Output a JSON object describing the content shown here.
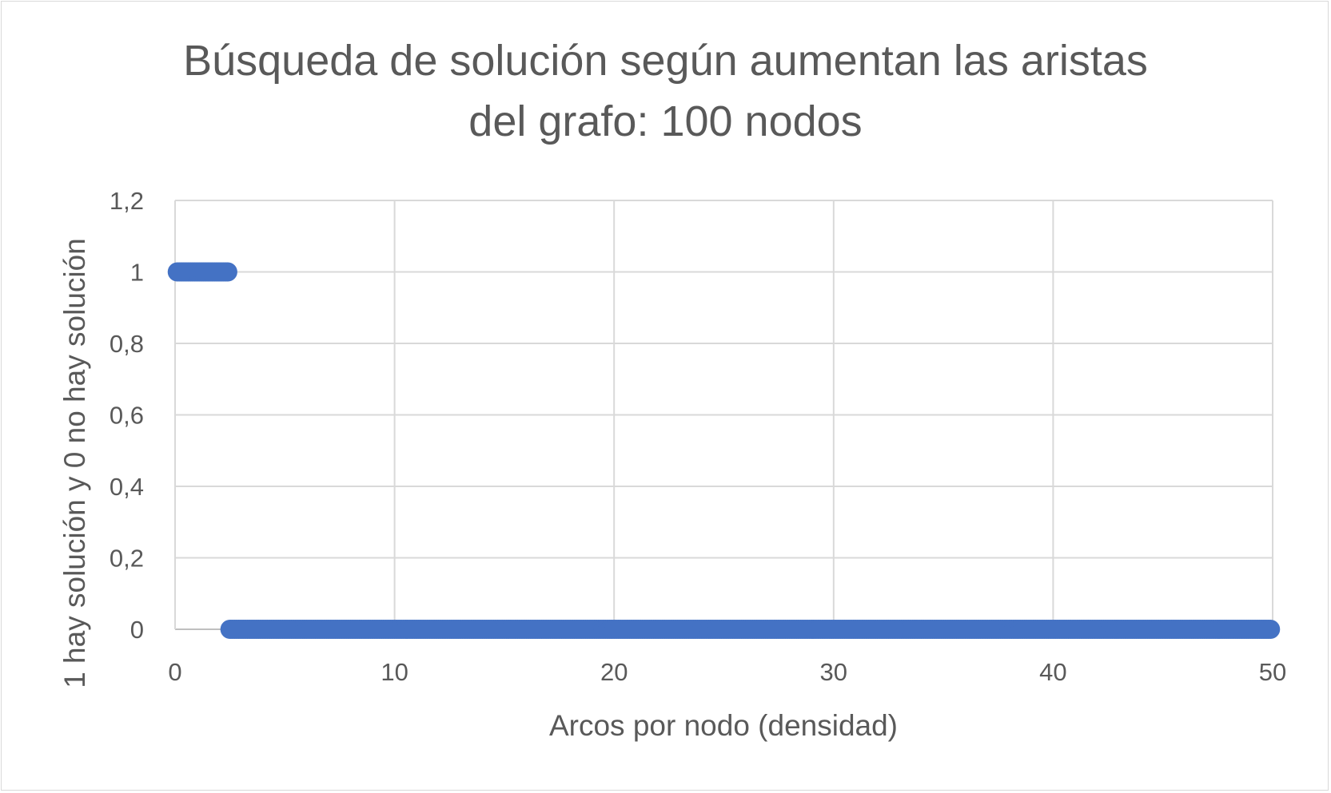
{
  "chart_data": {
    "type": "scatter",
    "title_line1": "Búsqueda de solución según aumentan las aristas",
    "title_line2": "del grafo: 100 nodos",
    "xlabel": "Arcos por nodo (densidad)",
    "ylabel": "1 hay solución y 0 no hay solución",
    "xlim": [
      0,
      50
    ],
    "ylim": [
      0,
      1.2
    ],
    "x_ticks": [
      "0",
      "10",
      "20",
      "30",
      "40",
      "50"
    ],
    "y_ticks": [
      "0",
      "0,2",
      "0,4",
      "0,6",
      "0,8",
      "1",
      "1,2"
    ],
    "grid": true,
    "legend": "none",
    "series_color": "#4472c4",
    "series": [
      {
        "points_solution": {
          "x_start": 0.1,
          "x_end": 2.4,
          "x_step": 0.1,
          "y": 1
        },
        "points_no_solution": {
          "x_start": 2.5,
          "x_end": 49.9,
          "x_step": 0.1,
          "y": 0
        }
      }
    ]
  }
}
